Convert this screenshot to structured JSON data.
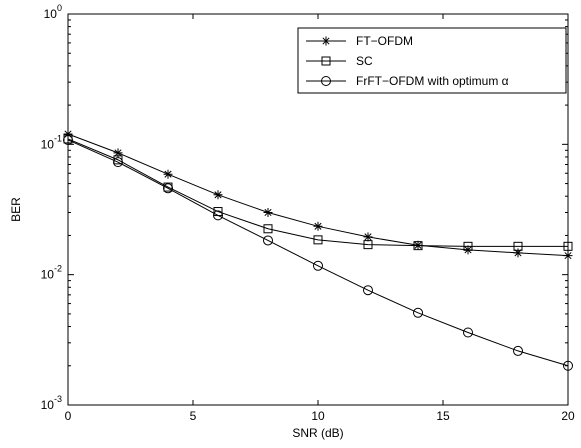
{
  "chart_data": {
    "type": "line",
    "xlabel": "SNR (dB)",
    "ylabel": "BER",
    "y_scale": "log",
    "xlim": [
      0,
      20
    ],
    "ylim": [
      0.001,
      1
    ],
    "x_ticks": [
      "0",
      "5",
      "10",
      "15",
      "20"
    ],
    "y_ticks": [
      {
        "base": "10",
        "exp": "-3"
      },
      {
        "base": "10",
        "exp": "-2"
      },
      {
        "base": "10",
        "exp": "-1"
      },
      {
        "base": "10",
        "exp": "0"
      }
    ],
    "grid": false,
    "legend_position": "top-right",
    "x": [
      0,
      2,
      4,
      6,
      8,
      10,
      12,
      14,
      16,
      18,
      20
    ],
    "series": [
      {
        "name": "FT−OFDM",
        "marker": "star",
        "values": [
          0.12,
          0.086,
          0.059,
          0.041,
          0.03,
          0.0235,
          0.0195,
          0.0168,
          0.0155,
          0.0147,
          0.014
        ]
      },
      {
        "name": "SC",
        "marker": "square",
        "values": [
          0.11,
          0.076,
          0.047,
          0.0305,
          0.0225,
          0.0185,
          0.017,
          0.0167,
          0.0165,
          0.0165,
          0.0165
        ]
      },
      {
        "name": "FrFT−OFDM with optimum α",
        "marker": "circle",
        "values": [
          0.108,
          0.073,
          0.046,
          0.0285,
          0.0183,
          0.0117,
          0.0076,
          0.0051,
          0.0036,
          0.0026,
          0.002
        ]
      }
    ]
  }
}
